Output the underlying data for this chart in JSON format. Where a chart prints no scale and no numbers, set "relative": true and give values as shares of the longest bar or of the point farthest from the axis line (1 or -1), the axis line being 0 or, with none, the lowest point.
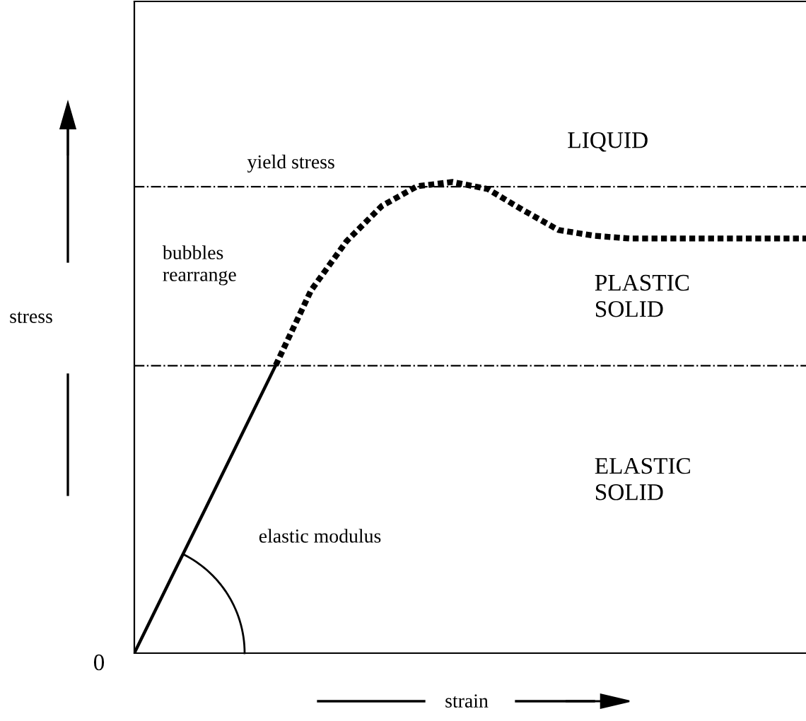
{
  "chart_data": {
    "type": "line",
    "relative": true,
    "xlabel": "strain",
    "ylabel": "stress",
    "categories": [
      null,
      null,
      null,
      null,
      null,
      null,
      null,
      null,
      null,
      null,
      null,
      null,
      null,
      null,
      null,
      null,
      null,
      null,
      null,
      null
    ],
    "series": [
      {
        "color": "#000000",
        "line_style": "solid",
        "values": [
          0,
          0.153,
          0.305,
          0.458,
          0.611,
          null,
          null,
          null,
          null,
          null,
          null,
          null,
          null,
          null,
          null,
          null,
          null,
          null,
          null,
          null
        ]
      },
      {
        "color": "#000000",
        "line_style": "dotted",
        "values": [
          null,
          null,
          null,
          null,
          0.611,
          0.77,
          0.874,
          0.949,
          0.991,
          1.0,
          0.985,
          0.94,
          0.898,
          0.886,
          0.88,
          0.88,
          0.88,
          0.88,
          0.88,
          0.88
        ]
      }
    ],
    "ref_lines": [
      {
        "axis": "y",
        "value": 0.99,
        "label": "yield stress",
        "color": "#000000",
        "line_style": "dashdot"
      },
      {
        "axis": "y",
        "value": 0.61,
        "color": "#000000",
        "line_style": "dashdot"
      }
    ],
    "annotations": [
      "LIQUID",
      "PLASTIC\nSOLID",
      "ELASTIC\nSOLID",
      "bubbles\nrearrange",
      "elastic modulus",
      "0"
    ],
    "legend": false,
    "grid": false,
    "marker": "none"
  }
}
